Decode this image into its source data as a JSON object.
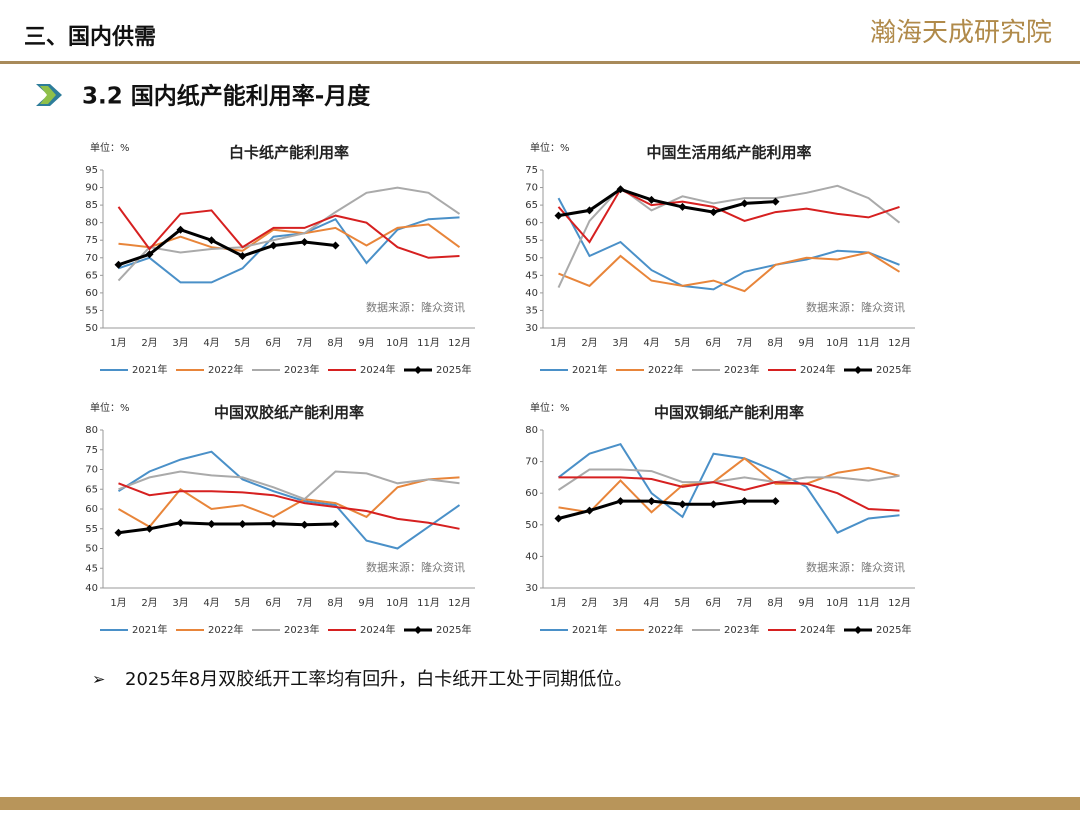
{
  "header": {
    "title": "三、国内供需",
    "logo": "瀚海天成研究院"
  },
  "section": {
    "title": "3.2 国内纸产能利用率-月度"
  },
  "bullet": "2025年8月双胶纸开工率均有回升，白卡纸开工处于同期低位。",
  "chart_data": [
    {
      "type": "line",
      "title": "白卡纸产能利用率",
      "unit_label": "单位：%",
      "source": "数据来源：隆众资讯",
      "categories": [
        "1月",
        "2月",
        "3月",
        "4月",
        "5月",
        "6月",
        "7月",
        "8月",
        "9月",
        "10月",
        "11月",
        "12月"
      ],
      "ylim": [
        50,
        95
      ],
      "yticks": [
        50,
        55,
        60,
        65,
        70,
        75,
        80,
        85,
        90,
        95
      ],
      "series": [
        {
          "name": "2021年",
          "color": "#4a90c8",
          "values": [
            67,
            70,
            63,
            63,
            67,
            76,
            77,
            81,
            68.5,
            78,
            81,
            81.5
          ]
        },
        {
          "name": "2022年",
          "color": "#e8853a",
          "values": [
            74,
            73,
            76,
            73,
            72,
            78,
            77,
            78.5,
            73.5,
            78.5,
            79.5,
            73
          ]
        },
        {
          "name": "2023年",
          "color": "#aaaaaa",
          "values": [
            63.5,
            73,
            71.5,
            72.5,
            73,
            75,
            77,
            83,
            88.5,
            90,
            88.5,
            82.5
          ]
        },
        {
          "name": "2024年",
          "color": "#d62020",
          "values": [
            84.5,
            72.5,
            82.5,
            83.5,
            73,
            78.5,
            78.5,
            82,
            80,
            73,
            70,
            70.5
          ]
        },
        {
          "name": "2025年",
          "color": "#000000",
          "values": [
            68,
            71,
            78,
            75,
            70.5,
            73.5,
            74.5,
            73.5,
            null,
            null,
            null,
            null
          ]
        }
      ]
    },
    {
      "type": "line",
      "title": "中国生活用纸产能利用率",
      "unit_label": "单位：%",
      "source": "数据来源：隆众资讯",
      "categories": [
        "1月",
        "2月",
        "3月",
        "4月",
        "5月",
        "6月",
        "7月",
        "8月",
        "9月",
        "10月",
        "11月",
        "12月"
      ],
      "ylim": [
        30,
        75
      ],
      "yticks": [
        30,
        35,
        40,
        45,
        50,
        55,
        60,
        65,
        70,
        75
      ],
      "series": [
        {
          "name": "2021年",
          "color": "#4a90c8",
          "values": [
            67,
            50.5,
            54.5,
            46.5,
            42,
            41,
            46,
            48,
            49.5,
            52,
            51.5,
            48
          ]
        },
        {
          "name": "2022年",
          "color": "#e8853a",
          "values": [
            45.5,
            42,
            50.5,
            43.5,
            42,
            43.5,
            40.5,
            48,
            50,
            49.5,
            51.5,
            46
          ]
        },
        {
          "name": "2023年",
          "color": "#aaaaaa",
          "values": [
            41.5,
            60.5,
            70,
            63.5,
            67.5,
            65.5,
            67,
            67,
            68.5,
            70.5,
            67,
            60
          ]
        },
        {
          "name": "2024年",
          "color": "#d62020",
          "values": [
            64.5,
            54.5,
            69.5,
            65,
            66,
            64.5,
            60.5,
            63,
            64,
            62.5,
            61.5,
            64.5
          ]
        },
        {
          "name": "2025年",
          "color": "#000000",
          "values": [
            62,
            63.5,
            69.5,
            66.5,
            64.5,
            63,
            65.5,
            66,
            null,
            null,
            null,
            null
          ]
        }
      ]
    },
    {
      "type": "line",
      "title": "中国双胶纸产能利用率",
      "unit_label": "单位：%",
      "source": "数据来源：隆众资讯",
      "categories": [
        "1月",
        "2月",
        "3月",
        "4月",
        "5月",
        "6月",
        "7月",
        "8月",
        "9月",
        "10月",
        "11月",
        "12月"
      ],
      "ylim": [
        40,
        80
      ],
      "yticks": [
        40,
        45,
        50,
        55,
        60,
        65,
        70,
        75,
        80
      ],
      "series": [
        {
          "name": "2021年",
          "color": "#4a90c8",
          "values": [
            64.5,
            69.5,
            72.5,
            74.5,
            67.5,
            64.5,
            62,
            61,
            52,
            50,
            55.5,
            61
          ]
        },
        {
          "name": "2022年",
          "color": "#e8853a",
          "values": [
            60,
            55.5,
            65,
            60,
            61,
            58,
            62.5,
            61.5,
            58,
            65.5,
            67.5,
            68
          ]
        },
        {
          "name": "2023年",
          "color": "#aaaaaa",
          "values": [
            65,
            68,
            69.5,
            68.5,
            68,
            65.5,
            62.5,
            69.5,
            69,
            66.5,
            67.5,
            66.5
          ]
        },
        {
          "name": "2024年",
          "color": "#d62020",
          "values": [
            66.5,
            63.5,
            64.5,
            64.5,
            64.2,
            63.5,
            61.5,
            60.5,
            59.5,
            57.5,
            56.5,
            55
          ]
        },
        {
          "name": "2025年",
          "color": "#000000",
          "values": [
            54,
            55,
            56.5,
            56.2,
            56.2,
            56.3,
            56,
            56.2,
            null,
            null,
            null,
            null
          ]
        }
      ]
    },
    {
      "type": "line",
      "title": "中国双铜纸产能利用率",
      "unit_label": "单位：%",
      "source": "数据来源：隆众资讯",
      "categories": [
        "1月",
        "2月",
        "3月",
        "4月",
        "5月",
        "6月",
        "7月",
        "8月",
        "9月",
        "10月",
        "11月",
        "12月"
      ],
      "ylim": [
        30,
        80
      ],
      "yticks": [
        30,
        40,
        50,
        60,
        70,
        80
      ],
      "series": [
        {
          "name": "2021年",
          "color": "#4a90c8",
          "values": [
            65,
            72.5,
            75.5,
            60,
            52.5,
            72.5,
            71,
            67,
            62,
            47.5,
            52,
            53
          ]
        },
        {
          "name": "2022年",
          "color": "#e8853a",
          "values": [
            55.5,
            54,
            64,
            54,
            62.5,
            63.5,
            71,
            63,
            63,
            66.5,
            68,
            65.5
          ]
        },
        {
          "name": "2023年",
          "color": "#aaaaaa",
          "values": [
            61,
            67.5,
            67.5,
            67,
            63.5,
            63.5,
            65,
            63.5,
            65,
            65,
            64,
            65.5
          ]
        },
        {
          "name": "2024年",
          "color": "#d62020",
          "values": [
            65,
            65,
            65,
            64.5,
            62,
            63.5,
            61,
            63.5,
            63,
            60,
            55,
            54.5
          ]
        },
        {
          "name": "2025年",
          "color": "#000000",
          "values": [
            52,
            54.5,
            57.5,
            57.5,
            56.5,
            56.5,
            57.5,
            57.5,
            null,
            null,
            null,
            null
          ]
        }
      ]
    }
  ]
}
